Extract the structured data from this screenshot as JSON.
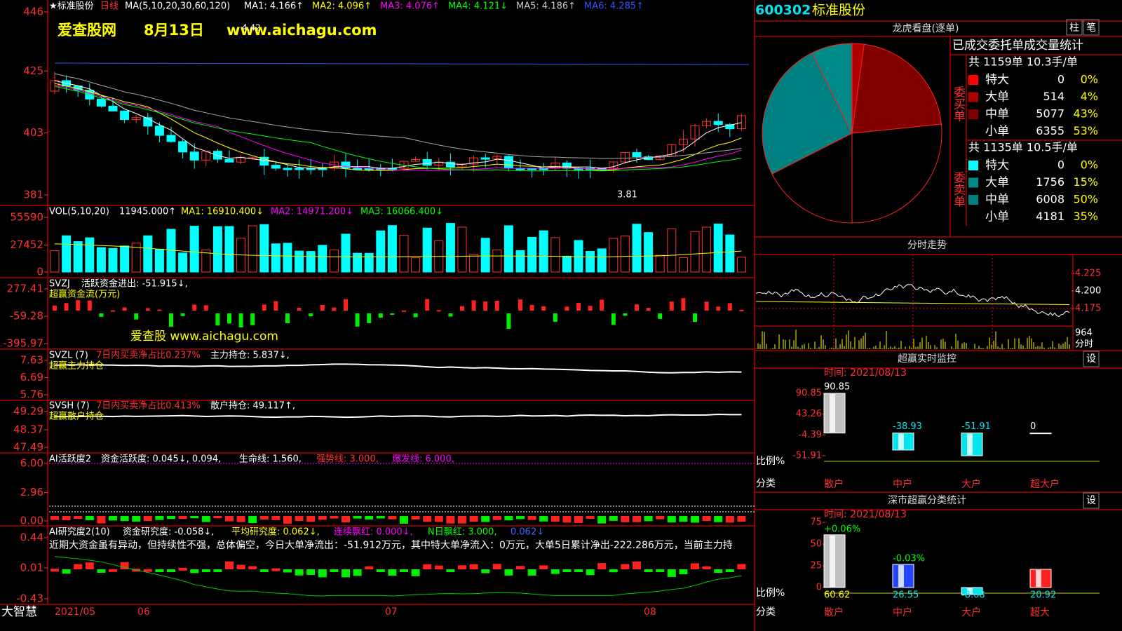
{
  "main_chart": {
    "stock": "★标准股份",
    "period": "日线",
    "ma_params": "MA(5,10,20,30,60,120)",
    "ma_values": [
      {
        "label": "MA1: 4.166↑",
        "color": "#ffffff"
      },
      {
        "label": "MA2: 4.096↑",
        "color": "#ffff00"
      },
      {
        "label": "MA3: 4.076↑",
        "color": "#ff00ff"
      },
      {
        "label": "MA4: 4.121↓",
        "color": "#00ff00"
      },
      {
        "label": "MA5: 4.186↑",
        "color": "#cccccc"
      },
      {
        "label": "MA6: 4.285↑",
        "color": "#3355ff"
      }
    ],
    "watermark": [
      "爱查股网",
      "8月13日",
      "www.aichagu.com"
    ],
    "high_label": "4.42",
    "low_label": "3.81",
    "ylim": [
      381,
      446
    ],
    "yticks": [
      446,
      425,
      403,
      381
    ]
  },
  "vol_chart": {
    "name": "VOL(5,10,20)",
    "value": "11945.000↑",
    "ma": [
      "MA1: 16910.400↓",
      "MA2: 14971.200↓",
      "MA3: 16066.400↓"
    ],
    "ylim": [
      0,
      55590
    ],
    "yticks": [
      55590,
      27452,
      0
    ]
  },
  "svzj_chart": {
    "name": "SVZJ",
    "indicator": "活跃资金进出: -51.915↓,",
    "subtitle": "超赢资金流(万元)",
    "watermark": "爱查股 www.aichagu.com",
    "ylim": [
      -395.97,
      277.41
    ],
    "yticks": [
      277.41,
      -59.28,
      -395.97
    ]
  },
  "svzl_chart": {
    "name": "SVZL (7)",
    "ratio": "7日内买卖净占比0.237%",
    "indicator": "主力持仓: 5.837↓,",
    "subtitle": "超赢主力持仓",
    "ylim": [
      5.76,
      7.63
    ],
    "yticks": [
      7.63,
      6.69,
      5.76
    ]
  },
  "svsh_chart": {
    "name": "SVSH (7)",
    "ratio": "7日内买卖净占比0.413%",
    "indicator": "散户持仓: 49.117↑,",
    "subtitle": "超赢散户持仓",
    "ylim": [
      47.49,
      49.29
    ],
    "yticks": [
      49.29,
      48.37,
      47.49
    ]
  },
  "ai_active_chart": {
    "name": "AI活跃度2",
    "items": [
      "资金活跃度: 0.045↓, 0.094,",
      "生命线: 1.560,",
      "强势线: 3.000,",
      "爆发线: 6.000,"
    ],
    "ylim": [
      0,
      6
    ],
    "yticks": [
      {
        "value": 6,
        "label": "6.00"
      },
      {
        "value": 2.96,
        "label": "2.96"
      },
      {
        "value": 0,
        "label": "0.00"
      }
    ]
  },
  "ai_research_chart": {
    "name": "AI研究度2(10)",
    "items": [
      "资金研究度: -0.058↓,",
      "平均研究度: 0.062↓,",
      "连续飘红: 0.000↓,",
      "N日飘红: 3.000,",
      "0.062↓"
    ],
    "comment": "近期大资金虽有异动，但持续性不强，总体偏空，今日大单净流出：-51.912万元，其中特大单净流入：0万元，大单5日累计净出-222.286万元，当前主力持",
    "ylim": [
      -0.43,
      0.44
    ],
    "yticks": [
      0.44,
      0.01,
      -0.43
    ]
  },
  "footer": {
    "app": "大智慧",
    "dates": [
      "2021/05",
      "06",
      "07",
      "08"
    ]
  },
  "quote": {
    "code": "600302",
    "name": "标准股份"
  },
  "order_panel": {
    "title": "龙虎看盘(逐单)",
    "buttons": [
      "柱",
      "笔"
    ],
    "subtitle": "已成交委托单成交量统计",
    "buy": {
      "summary": "共 1159单 10.3手/单",
      "label": "委买单",
      "rows": [
        {
          "name": "特大",
          "count": 0,
          "pct": "0%",
          "color": "#ff0000"
        },
        {
          "name": "大单",
          "count": 514,
          "pct": "4%",
          "color": "#b00000"
        },
        {
          "name": "中单",
          "count": 5077,
          "pct": "43%",
          "color": "#800000"
        },
        {
          "name": "小单",
          "count": 6355,
          "pct": "53%",
          "color": "#000000"
        }
      ]
    },
    "sell": {
      "summary": "共 1135单 10.5手/单",
      "label": "委卖单",
      "rows": [
        {
          "name": "特大",
          "count": 0,
          "pct": "0%",
          "color": "#00ffff"
        },
        {
          "name": "大单",
          "count": 1756,
          "pct": "15%",
          "color": "#008b8b"
        },
        {
          "name": "中单",
          "count": 6008,
          "pct": "50%",
          "color": "#008080"
        },
        {
          "name": "小单",
          "count": 4181,
          "pct": "35%",
          "color": "#000000"
        }
      ]
    }
  },
  "intraday": {
    "title": "分时走势",
    "ylim": [
      4.175,
      4.225
    ],
    "yticks": [
      {
        "value": 4.225,
        "label": "4.225"
      },
      {
        "value": 4.2,
        "label": "4.200"
      },
      {
        "value": 4.175,
        "label": "4.175"
      }
    ],
    "volume": "964",
    "volume_unit": "分时"
  },
  "monitor": {
    "title": "超赢实时监控",
    "button": "设",
    "time": "时间: 2021/08/13",
    "categories": [
      "散户",
      "中户",
      "大户",
      "超大户"
    ],
    "values": [
      90.85,
      -38.93,
      -51.91,
      0
    ],
    "colors": [
      "#c0c0c0",
      "#00e5ee",
      "#00e5ee",
      "#c0c0c0"
    ],
    "ylim": [
      -51.91,
      90.85
    ],
    "yticks": [
      90.85,
      43.26,
      -4.39,
      -51.91
    ],
    "ylabel": "比例%",
    "xlabel": "分类"
  },
  "sz_stats": {
    "title": "深市超赢分类统计",
    "button": "设",
    "time": "时间: 2021/08/13",
    "categories": [
      "散户",
      "中户",
      "大户",
      "超大"
    ],
    "values": [
      60.62,
      26.55,
      -8.08,
      20.92
    ],
    "colors": [
      "#c0c0c0",
      "#2244ff",
      "#00e5ee",
      "#ff2020"
    ],
    "changes": [
      {
        "index": 0,
        "label": "+0.06%"
      },
      {
        "index": 1,
        "label": "-0.03%"
      }
    ],
    "ylim": [
      0,
      75
    ],
    "yticks": [
      75,
      50,
      25,
      0
    ],
    "ylabel": "比例%",
    "xlabel": "分类"
  }
}
